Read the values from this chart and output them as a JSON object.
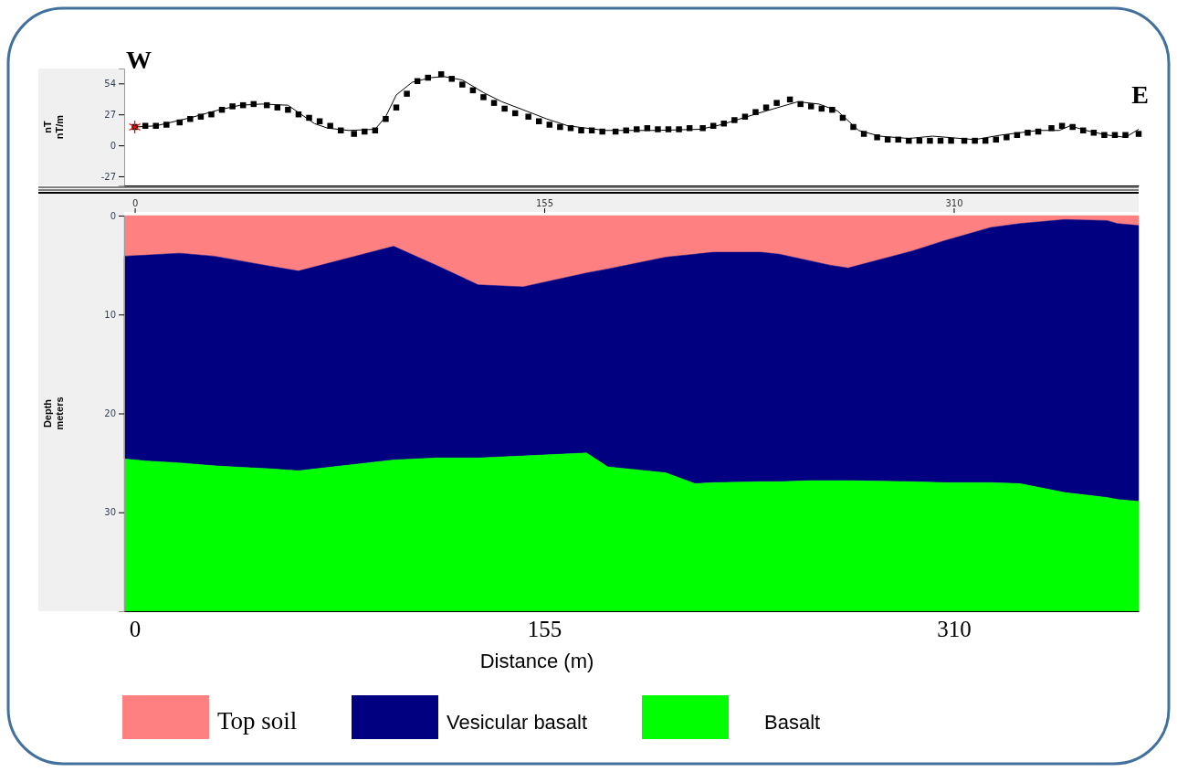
{
  "chart_data": [
    {
      "type": "line",
      "ylabel": "nT\nnT/m",
      "annotations": [
        "W",
        "E"
      ],
      "xlim": [
        -4,
        380
      ],
      "ylim": [
        -35,
        67
      ],
      "yticks": [
        54,
        27,
        0,
        -27
      ],
      "tick_labels": "y",
      "series": [
        {
          "color": "#000000",
          "x": [
            0,
            8,
            21,
            32,
            40,
            48,
            58,
            68,
            73,
            81,
            91,
            95,
            99,
            105,
            112,
            117,
            124,
            132,
            139,
            147,
            156,
            164,
            178,
            183,
            197,
            214,
            222,
            236,
            251,
            259,
            266,
            274,
            282,
            293,
            302,
            318,
            328,
            342,
            350,
            354,
            360,
            368,
            375,
            380
          ],
          "values": [
            16,
            17,
            24,
            31,
            35,
            36,
            35,
            19,
            15,
            13,
            14,
            25,
            44,
            55,
            59,
            60,
            57,
            46,
            38,
            31,
            23,
            17,
            13,
            13,
            13,
            14,
            18,
            28,
            38,
            36,
            30,
            13,
            8,
            6,
            8,
            5,
            9,
            13,
            13,
            17,
            13,
            9,
            7,
            14
          ]
        },
        {
          "type": "scatter",
          "marker": "square",
          "color": "#000000",
          "x": [
            0,
            4,
            8,
            12,
            17,
            21,
            25,
            29,
            33,
            37,
            41,
            45,
            50,
            54,
            58,
            62,
            66,
            70,
            74,
            78,
            83,
            87,
            91,
            95,
            99,
            103,
            107,
            111,
            116,
            120,
            124,
            128,
            132,
            136,
            140,
            144,
            149,
            153,
            157,
            161,
            165,
            169,
            173,
            177,
            182,
            186,
            190,
            194,
            198,
            202,
            206,
            210,
            215,
            219,
            223,
            227,
            231,
            235,
            239,
            243,
            248,
            252,
            256,
            260,
            264,
            268,
            272,
            276,
            281,
            285,
            289,
            293,
            297,
            301,
            305,
            309,
            314,
            318,
            322,
            326,
            330,
            334,
            338,
            342,
            347,
            351,
            355,
            359,
            363,
            367,
            371,
            375,
            380
          ],
          "values": [
            16,
            17,
            17,
            18,
            20,
            23,
            25,
            27,
            31,
            34,
            35,
            36,
            35,
            33,
            31,
            27,
            24,
            21,
            17,
            13,
            10,
            12,
            13,
            23,
            33,
            45,
            56,
            59,
            62,
            58,
            53,
            48,
            42,
            37,
            32,
            28,
            25,
            21,
            18,
            16,
            15,
            13,
            13,
            12,
            12,
            13,
            14,
            15,
            14,
            14,
            14,
            15,
            15,
            17,
            19,
            22,
            25,
            29,
            33,
            37,
            40,
            36,
            34,
            32,
            31,
            24,
            16,
            10,
            7,
            5,
            5,
            4,
            4,
            4,
            4,
            4,
            4,
            4,
            4,
            5,
            7,
            9,
            11,
            12,
            15,
            17,
            16,
            13,
            11,
            9,
            9,
            9,
            10
          ]
        }
      ]
    },
    {
      "type": "area",
      "stacked": true,
      "xlabel": "Distance (m)",
      "ylabel": "Depth\nmeters",
      "legend": "bottom",
      "xlim": [
        -4,
        380
      ],
      "xticks": [
        0,
        155,
        310
      ],
      "x2lim": [
        -4,
        380
      ],
      "x2ticks": [
        0,
        155,
        310
      ],
      "ylim": [
        40,
        0
      ],
      "yticks": [
        0,
        10,
        20,
        30
      ],
      "x": [
        -4,
        4,
        17,
        30,
        51,
        62,
        98,
        114,
        130,
        147,
        171,
        179,
        201,
        212,
        219,
        237,
        244,
        256,
        263,
        270,
        294,
        307,
        324,
        335,
        352,
        368,
        372,
        380
      ],
      "series": [
        {
          "name": "Top soil",
          "color": "#ff8080",
          "values": [
            4.1,
            4.0,
            3.8,
            4.1,
            5.1,
            5.6,
            3.1,
            5.0,
            7.0,
            7.2,
            5.8,
            5.4,
            4.2,
            3.9,
            3.7,
            3.7,
            3.9,
            4.6,
            5.0,
            5.3,
            3.6,
            2.5,
            1.2,
            0.8,
            0.4,
            0.5,
            0.8,
            1.0
          ]
        },
        {
          "name": "Vesicular basalt",
          "color": "#000080",
          "values": [
            20.5,
            20.8,
            21.2,
            21.2,
            20.5,
            20.2,
            21.6,
            19.5,
            17.5,
            17.1,
            18.2,
            20.0,
            21.8,
            23.2,
            23.3,
            23.2,
            23.0,
            22.2,
            21.8,
            21.5,
            23.3,
            24.5,
            25.8,
            26.3,
            27.6,
            28.0,
            27.9,
            27.9
          ]
        },
        {
          "name": "Basalt",
          "color": "#00ff00",
          "values": [
            15.4,
            15.2,
            15.0,
            14.7,
            14.4,
            14.2,
            15.3,
            15.5,
            15.5,
            15.7,
            16.0,
            14.6,
            14.0,
            12.9,
            13.0,
            13.1,
            13.1,
            13.2,
            13.2,
            13.2,
            13.1,
            13.0,
            13.0,
            12.9,
            12.0,
            11.5,
            11.3,
            11.1
          ]
        }
      ]
    }
  ]
}
